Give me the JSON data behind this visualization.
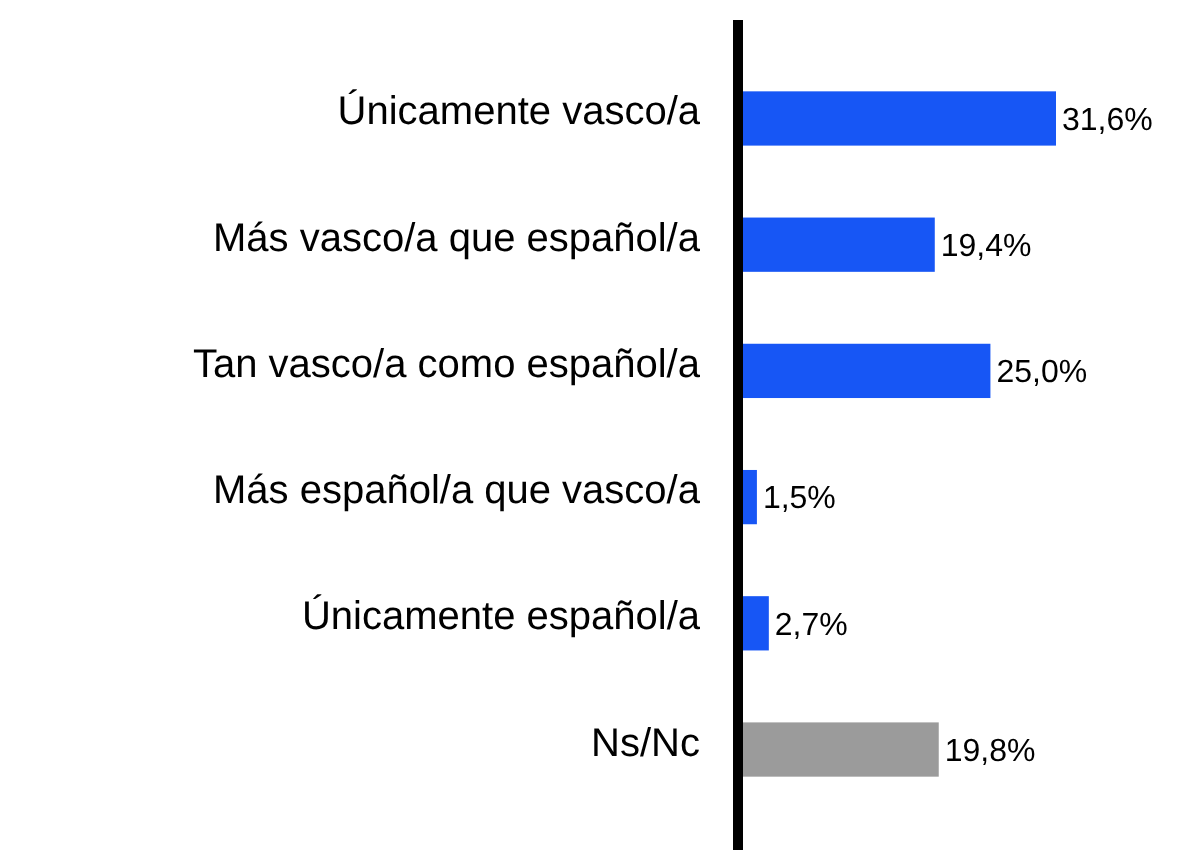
{
  "chart_data": {
    "type": "bar",
    "orientation": "horizontal",
    "categories": [
      "Únicamente vasco/a",
      "Más vasco/a que español/a",
      "Tan vasco/a como español/a",
      "Más español/a que vasco/a",
      "Únicamente español/a",
      "Ns/Nc"
    ],
    "values": [
      31.6,
      19.4,
      25.0,
      1.5,
      2.7,
      19.8
    ],
    "colors": [
      "#1756f5",
      "#1756f5",
      "#1756f5",
      "#1756f5",
      "#1756f5",
      "#9b9b9b"
    ],
    "value_labels": [
      "31,6%",
      "19,4%",
      "25,0%",
      "1,5%",
      "2,7%",
      "19,8%"
    ]
  }
}
